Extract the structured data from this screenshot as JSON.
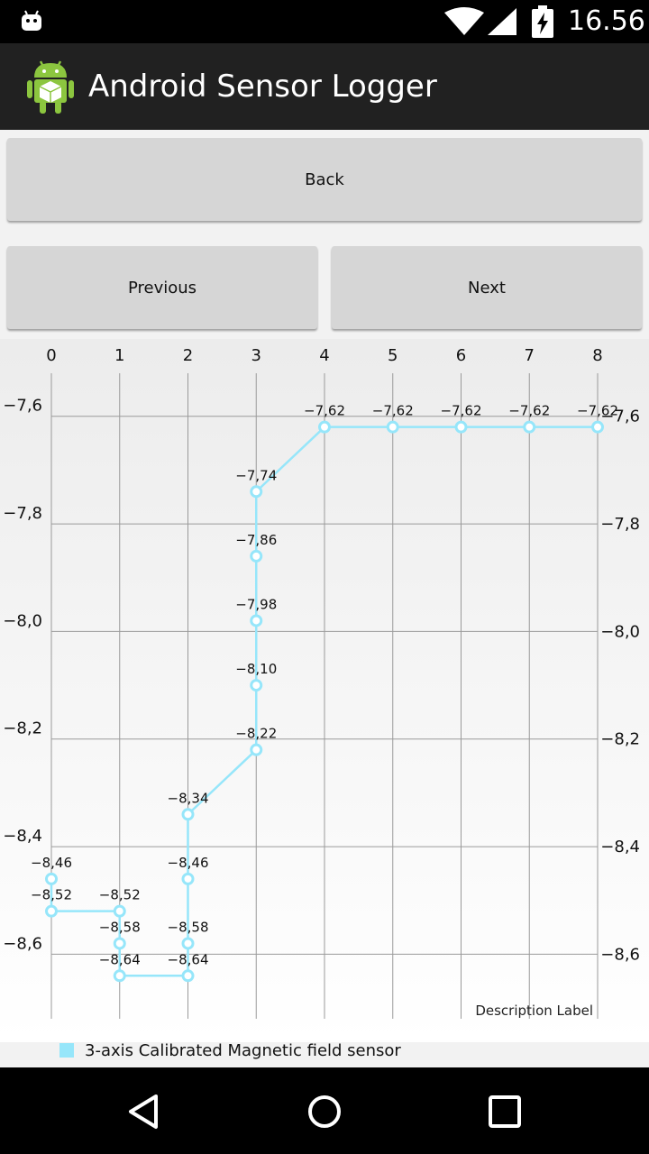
{
  "status_bar": {
    "time": "16.56",
    "icons": [
      "android-robot-icon",
      "wifi-icon",
      "cellular-signal-icon",
      "battery-charging-icon"
    ]
  },
  "app_bar": {
    "title": "Android Sensor Logger",
    "icon": "android-app-icon"
  },
  "buttons": {
    "back": "Back",
    "previous": "Previous",
    "next": "Next"
  },
  "chart_data": {
    "type": "line",
    "x_ticks": [
      "0",
      "1",
      "2",
      "3",
      "4",
      "5",
      "6",
      "7",
      "8"
    ],
    "y_ticks": [
      "−7,6",
      "−7,8",
      "−8,0",
      "−8,2",
      "−8,4",
      "−8,6"
    ],
    "y_tick_values": [
      -7.6,
      -7.8,
      -8.0,
      -8.2,
      -8.4,
      -8.6
    ],
    "xlim": [
      0,
      8
    ],
    "ylim": [
      -8.72,
      -7.52
    ],
    "grid": true,
    "series_color": "#96e6fa",
    "description_label": "Description Label",
    "legend_position": "bottom-left",
    "series": [
      {
        "name": "3-axis Calibrated Magnetic field sensor",
        "points": [
          {
            "x": 0,
            "y": -8.46,
            "label": "−8,46"
          },
          {
            "x": 0,
            "y": -8.52,
            "label": "−8,52"
          },
          {
            "x": 1,
            "y": -8.52,
            "label": "−8,52"
          },
          {
            "x": 1,
            "y": -8.58,
            "label": "−8,58"
          },
          {
            "x": 1,
            "y": -8.64,
            "label": "−8,64"
          },
          {
            "x": 2,
            "y": -8.64,
            "label": "−8,64"
          },
          {
            "x": 2,
            "y": -8.58,
            "label": "−8,58"
          },
          {
            "x": 2,
            "y": -8.46,
            "label": "−8,46"
          },
          {
            "x": 2,
            "y": -8.34,
            "label": "−8,34"
          },
          {
            "x": 3,
            "y": -8.22,
            "label": "−8,22"
          },
          {
            "x": 3,
            "y": -8.1,
            "label": "−8,10"
          },
          {
            "x": 3,
            "y": -7.98,
            "label": "−7,98"
          },
          {
            "x": 3,
            "y": -7.86,
            "label": "−7,86"
          },
          {
            "x": 3,
            "y": -7.74,
            "label": "−7,74"
          },
          {
            "x": 4,
            "y": -7.62,
            "label": "−7,62"
          },
          {
            "x": 5,
            "y": -7.62,
            "label": "−7,62"
          },
          {
            "x": 6,
            "y": -7.62,
            "label": "−7,62"
          },
          {
            "x": 7,
            "y": -7.62,
            "label": "−7,62"
          },
          {
            "x": 8,
            "y": -7.62,
            "label": "−7,62"
          }
        ]
      }
    ]
  },
  "legend": {
    "label": "3-axis Calibrated Magnetic field sensor"
  },
  "nav_bar": {
    "icons": [
      "nav-back-icon",
      "nav-home-icon",
      "nav-recents-icon"
    ]
  }
}
